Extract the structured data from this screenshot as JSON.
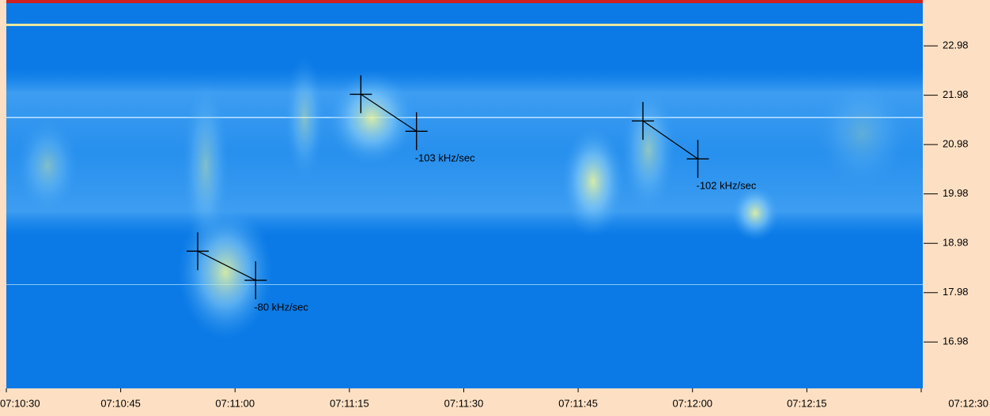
{
  "chart_data": {
    "type": "spectrogram",
    "xlim": [
      25830,
      25950
    ],
    "xticks": [
      {
        "value": 25830,
        "label": "07:10:30"
      },
      {
        "value": 25845,
        "label": "07:10:45"
      },
      {
        "value": 25860,
        "label": "07:11:00"
      },
      {
        "value": 25875,
        "label": "07:11:15"
      },
      {
        "value": 25890,
        "label": "07:11:30"
      },
      {
        "value": 25905,
        "label": "07:11:45"
      },
      {
        "value": 25920,
        "label": "07:12:00"
      },
      {
        "value": 25935,
        "label": "07:12:15"
      },
      {
        "value": 25950,
        "label": "07:12:30"
      }
    ],
    "ylim": [
      16.04,
      23.83
    ],
    "yticks": [
      22.98,
      21.98,
      20.98,
      19.98,
      18.98,
      17.98,
      16.98
    ],
    "annotations": [
      {
        "label": "-80 kHz/sec",
        "x": [
          25855.1,
          25862.7
        ],
        "y": [
          18.82,
          18.23
        ]
      },
      {
        "label": "-103 kHz/sec",
        "x": [
          25876.5,
          25883.8
        ],
        "y": [
          22.0,
          21.25
        ]
      },
      {
        "label": "-102 kHz/sec",
        "x": [
          25913.5,
          25920.7
        ],
        "y": [
          21.46,
          20.69
        ]
      }
    ]
  }
}
